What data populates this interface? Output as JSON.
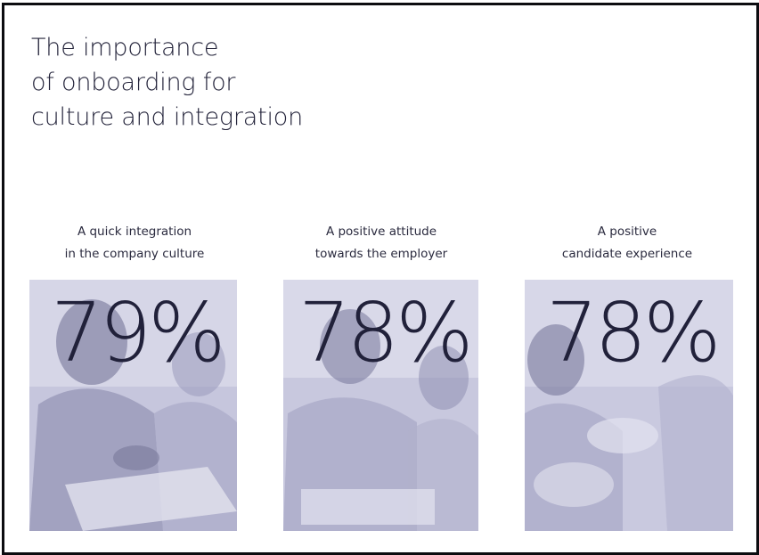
{
  "title_lines": [
    "The importance",
    "of onboarding for",
    "culture and integration"
  ],
  "stats": [
    {
      "caption_lines": [
        "A quick integration",
        "in the company culture"
      ],
      "value": "79%"
    },
    {
      "caption_lines": [
        "A positive attitude",
        "towards the employer"
      ],
      "value": "78%"
    },
    {
      "caption_lines": [
        "A positive",
        "candidate experience"
      ],
      "value": "78%"
    }
  ],
  "colors": {
    "text": "#23233a",
    "photo_tint": "#c9c9df",
    "border": "#0c0c10"
  },
  "images": [
    "team-meeting-photo",
    "group-discussion-photo",
    "conversation-photo"
  ]
}
